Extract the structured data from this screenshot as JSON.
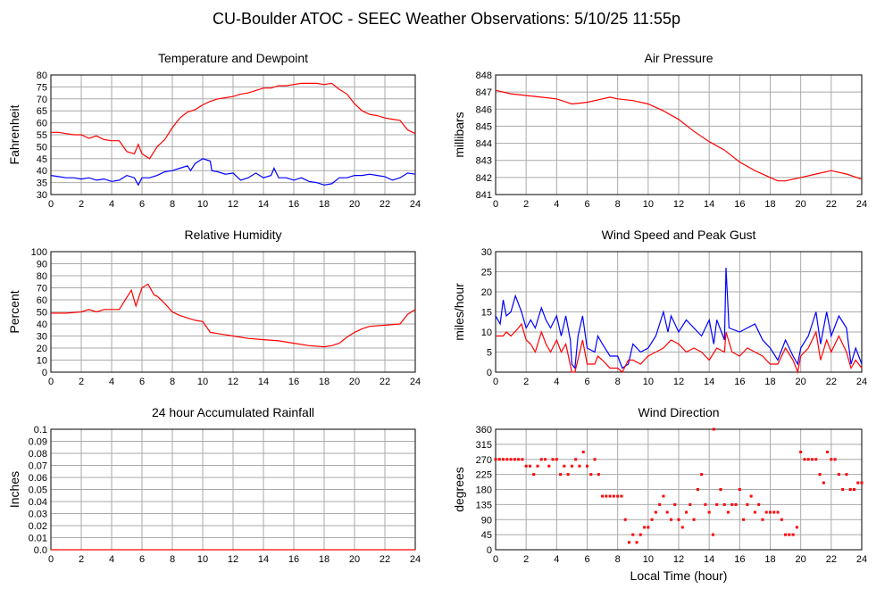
{
  "title": "CU-Boulder ATOC - SEEC Weather Observations: 5/10/25 11:55p",
  "shared_xlabel": "Local Time (hour)",
  "chart_data": [
    {
      "id": "temp",
      "type": "line",
      "title": "Temperature and Dewpoint",
      "xlabel": "",
      "ylabel": "Fahrenheit",
      "xlim": [
        0,
        24
      ],
      "ylim": [
        30,
        80
      ],
      "xticks": [
        0,
        2,
        4,
        6,
        8,
        10,
        12,
        14,
        16,
        18,
        20,
        22,
        24
      ],
      "yticks": [
        30,
        35,
        40,
        45,
        50,
        55,
        60,
        65,
        70,
        75,
        80
      ],
      "grid": true,
      "series": [
        {
          "color": "#ff0000",
          "x": [
            0,
            0.5,
            1,
            1.5,
            2,
            2.5,
            3,
            3.5,
            4,
            4.5,
            5,
            5.5,
            5.75,
            6,
            6.5,
            7,
            7.5,
            8,
            8.5,
            9,
            9.5,
            10,
            10.5,
            11,
            11.5,
            12,
            12.5,
            13,
            13.5,
            14,
            14.5,
            15,
            15.5,
            16,
            16.5,
            17,
            17.5,
            18,
            18.5,
            19,
            19.5,
            20,
            20.5,
            21,
            21.5,
            22,
            22.5,
            23,
            23.5,
            24
          ],
          "y": [
            56,
            56,
            55.5,
            55,
            55,
            53.5,
            54.5,
            53,
            52.5,
            52.5,
            48,
            47,
            51,
            47,
            45,
            50,
            53,
            58,
            62,
            64.5,
            65.5,
            67.5,
            69,
            70,
            70.5,
            71,
            72,
            72.5,
            73.5,
            74.5,
            74.5,
            75.5,
            75.5,
            76,
            76.5,
            76.5,
            76.5,
            76,
            76.5,
            74,
            72,
            68,
            65,
            63.5,
            63,
            62,
            61.5,
            61,
            57,
            55.5
          ]
        },
        {
          "color": "#0000ff",
          "x": [
            0,
            0.5,
            1,
            1.5,
            2,
            2.5,
            3,
            3.5,
            4,
            4.5,
            5,
            5.5,
            5.75,
            6,
            6.5,
            7,
            7.5,
            8,
            8.5,
            9,
            9.2,
            9.5,
            10,
            10.5,
            10.6,
            11,
            11.5,
            12,
            12.5,
            13,
            13.5,
            14,
            14.5,
            14.7,
            15,
            15.5,
            16,
            16.5,
            17,
            17.5,
            18,
            18.5,
            19,
            19.5,
            20,
            20.5,
            21,
            21.5,
            22,
            22.5,
            23,
            23.5,
            24
          ],
          "y": [
            38,
            37.5,
            37,
            37,
            36.5,
            37,
            36,
            36.5,
            35.5,
            36,
            38,
            37,
            34,
            37,
            37,
            38,
            39.5,
            40,
            41,
            42,
            40,
            43,
            45,
            44,
            40,
            39.5,
            38.5,
            39,
            36,
            37,
            39,
            37,
            38,
            41,
            37,
            37,
            36,
            37,
            35.5,
            35,
            34,
            34.5,
            37,
            37,
            38,
            38,
            38.5,
            38,
            37.5,
            36,
            37,
            39,
            38.5
          ]
        }
      ]
    },
    {
      "id": "pressure",
      "type": "line",
      "title": "Air Pressure",
      "xlabel": "",
      "ylabel": "millibars",
      "xlim": [
        0,
        24
      ],
      "ylim": [
        841,
        848
      ],
      "xticks": [
        0,
        2,
        4,
        6,
        8,
        10,
        12,
        14,
        16,
        18,
        20,
        22,
        24
      ],
      "yticks": [
        841,
        842,
        843,
        844,
        845,
        846,
        847,
        848
      ],
      "grid": true,
      "series": [
        {
          "color": "#ff0000",
          "x": [
            0,
            1,
            2,
            3,
            4,
            5,
            6,
            7,
            7.5,
            8,
            9,
            10,
            11,
            12,
            13,
            14,
            15,
            16,
            17,
            18,
            18.5,
            19,
            20,
            21,
            22,
            23,
            24
          ],
          "y": [
            847.1,
            846.9,
            846.8,
            846.7,
            846.6,
            846.3,
            846.4,
            846.6,
            846.7,
            846.6,
            846.5,
            846.3,
            845.9,
            845.4,
            844.7,
            844.1,
            843.6,
            842.9,
            842.4,
            842,
            841.8,
            841.8,
            842,
            842.2,
            842.4,
            842.2,
            841.9
          ]
        }
      ]
    },
    {
      "id": "rh",
      "type": "line",
      "title": "Relative Humidity",
      "xlabel": "",
      "ylabel": "Percent",
      "xlim": [
        0,
        24
      ],
      "ylim": [
        0,
        100
      ],
      "xticks": [
        0,
        2,
        4,
        6,
        8,
        10,
        12,
        14,
        16,
        18,
        20,
        22,
        24
      ],
      "yticks": [
        0,
        10,
        20,
        30,
        40,
        50,
        60,
        70,
        80,
        90,
        100
      ],
      "grid": true,
      "series": [
        {
          "color": "#ff0000",
          "x": [
            0,
            1,
            2,
            2.5,
            3,
            3.5,
            4,
            4.5,
            5,
            5.3,
            5.6,
            6,
            6.4,
            6.8,
            7,
            7.5,
            8,
            8.5,
            9,
            9.5,
            10,
            10.5,
            11,
            12,
            13,
            14,
            15,
            16,
            17,
            18,
            18.5,
            19,
            19.5,
            20,
            20.5,
            21,
            22,
            23,
            23.5,
            24
          ],
          "y": [
            49,
            49,
            50,
            52,
            50,
            52,
            52,
            52,
            62,
            68,
            55,
            70,
            73,
            64,
            63,
            57,
            50,
            47,
            45,
            43,
            42,
            33,
            32,
            30,
            28,
            27,
            26,
            24,
            22,
            21,
            22,
            24,
            29,
            33,
            36,
            38,
            39,
            40,
            48,
            52
          ]
        }
      ]
    },
    {
      "id": "wind",
      "type": "line",
      "title": "Wind Speed and Peak Gust",
      "xlabel": "",
      "ylabel": "miles/hour",
      "xlim": [
        0,
        24
      ],
      "ylim": [
        0,
        30
      ],
      "xticks": [
        0,
        2,
        4,
        6,
        8,
        10,
        12,
        14,
        16,
        18,
        20,
        22,
        24
      ],
      "yticks": [
        0,
        5,
        10,
        15,
        20,
        25,
        30
      ],
      "grid": true,
      "series": [
        {
          "color": "#0000ff",
          "x": [
            0,
            0.3,
            0.5,
            0.7,
            1,
            1.3,
            1.5,
            1.7,
            2,
            2.3,
            2.6,
            3,
            3.3,
            3.6,
            4,
            4.3,
            4.6,
            4.9,
            5,
            5.2,
            5.4,
            5.7,
            6,
            6.5,
            6.7,
            7,
            7.5,
            8,
            8.3,
            8.7,
            9,
            9.5,
            10,
            10.5,
            11,
            11.3,
            11.5,
            12,
            12.5,
            13,
            13.5,
            14,
            14.3,
            14.5,
            15,
            15.1,
            15.3,
            16,
            16.5,
            17,
            17.5,
            18,
            18.5,
            19,
            19.5,
            19.8,
            20,
            20.5,
            21,
            21.3,
            21.7,
            22,
            22.5,
            23,
            23.3,
            23.6,
            24
          ],
          "y": [
            14,
            12,
            18,
            14,
            15,
            19,
            17,
            15,
            11,
            13,
            11,
            16,
            13,
            11,
            14,
            9,
            14,
            8,
            2,
            1,
            9,
            14,
            6,
            5,
            9,
            7,
            4,
            4,
            1,
            2,
            7,
            5,
            6,
            9,
            15,
            10,
            14,
            10,
            13,
            11,
            9,
            13,
            7,
            13,
            8,
            26,
            11,
            10,
            11,
            12,
            8,
            6,
            3,
            8,
            4,
            2,
            6,
            9,
            15,
            7,
            15,
            9,
            14,
            11,
            2,
            6,
            2
          ]
        },
        {
          "color": "#ff0000",
          "x": [
            0,
            0.5,
            0.7,
            1,
            1.5,
            1.7,
            2,
            2.3,
            2.6,
            3,
            3.3,
            3.6,
            4,
            4.3,
            4.6,
            5,
            5.2,
            5.7,
            6,
            6.5,
            6.7,
            7,
            7.5,
            8,
            8.3,
            8.7,
            9,
            9.5,
            10,
            10.5,
            11,
            11.5,
            12,
            12.5,
            13,
            13.5,
            14,
            14.5,
            15,
            15.1,
            15.5,
            16,
            16.5,
            17,
            17.5,
            18,
            18.5,
            19,
            19.5,
            19.8,
            20,
            20.5,
            21,
            21.3,
            21.7,
            22,
            22.5,
            23,
            23.3,
            23.6,
            24
          ],
          "y": [
            9,
            9,
            10,
            9,
            11,
            12,
            8,
            7,
            5,
            10,
            7,
            5,
            8,
            5,
            7,
            0,
            0,
            8,
            2,
            2,
            4,
            3,
            1,
            1,
            0,
            3,
            3,
            2,
            4,
            5,
            6,
            8,
            7,
            5,
            6,
            5,
            3,
            6,
            5,
            10,
            5,
            4,
            6,
            5,
            4,
            2,
            2,
            6,
            3,
            0,
            4,
            6,
            10,
            3,
            8,
            5,
            9,
            5,
            1,
            3,
            1
          ]
        }
      ]
    },
    {
      "id": "rain",
      "type": "line",
      "title": "24 hour Accumulated Rainfall",
      "xlabel": "",
      "ylabel": "Inches",
      "xlim": [
        0,
        24
      ],
      "ylim": [
        0,
        0.1
      ],
      "xticks": [
        0,
        2,
        4,
        6,
        8,
        10,
        12,
        14,
        16,
        18,
        20,
        22,
        24
      ],
      "yticks": [
        "0.0",
        "0.01",
        "0.02",
        "0.03",
        "0.04",
        "0.05",
        "0.06",
        "0.07",
        "0.08",
        "0.09",
        "0.1"
      ],
      "grid": true,
      "series": [
        {
          "color": "#ff0000",
          "x": [
            0,
            24
          ],
          "y": [
            0,
            0
          ]
        }
      ]
    },
    {
      "id": "winddir",
      "type": "scatter",
      "title": "Wind Direction",
      "xlabel": "Local Time (hour)",
      "ylabel": "degrees",
      "xlim": [
        0,
        24
      ],
      "ylim": [
        0,
        360
      ],
      "xticks": [
        0,
        2,
        4,
        6,
        8,
        10,
        12,
        14,
        16,
        18,
        20,
        22,
        24
      ],
      "yticks": [
        0,
        45,
        90,
        135,
        180,
        225,
        270,
        315,
        360
      ],
      "grid": true,
      "series": [
        {
          "color": "#ff0000",
          "x": [
            0,
            0.25,
            0.5,
            0.75,
            1,
            1.25,
            1.5,
            1.75,
            2,
            2.25,
            2.5,
            2.75,
            3,
            3.25,
            3.5,
            3.75,
            4,
            4.25,
            4.5,
            4.75,
            5,
            5.25,
            5.5,
            5.75,
            6,
            6.25,
            6.5,
            6.75,
            7,
            7.25,
            7.5,
            7.75,
            8,
            8.25,
            8.5,
            8.75,
            9,
            9.25,
            9.5,
            9.75,
            10,
            10.25,
            10.5,
            10.75,
            11,
            11.25,
            11.5,
            11.75,
            12,
            12.25,
            12.5,
            12.75,
            13,
            13.25,
            13.5,
            13.75,
            14,
            14.25,
            14.3,
            14.5,
            14.75,
            15,
            15.25,
            15.5,
            15.75,
            16,
            16.25,
            16.5,
            16.75,
            17,
            17.25,
            17.5,
            17.75,
            18,
            18.25,
            18.5,
            18.75,
            19,
            19.25,
            19.5,
            19.75,
            20,
            20.25,
            20.5,
            20.75,
            21,
            21.25,
            21.5,
            21.75,
            22,
            22.25,
            22.5,
            22.75,
            23,
            23.25,
            23.5,
            23.75,
            24
          ],
          "y": [
            270,
            270,
            270,
            270,
            270,
            270,
            270,
            270,
            250,
            250,
            225,
            250,
            270,
            270,
            250,
            270,
            270,
            225,
            250,
            225,
            250,
            270,
            250,
            292,
            250,
            225,
            270,
            225,
            160,
            160,
            160,
            160,
            160,
            160,
            90,
            22,
            45,
            22,
            45,
            67,
            67,
            90,
            112,
            135,
            160,
            112,
            90,
            135,
            90,
            67,
            112,
            135,
            90,
            180,
            225,
            135,
            112,
            45,
            360,
            135,
            180,
            135,
            112,
            135,
            135,
            180,
            90,
            135,
            160,
            112,
            135,
            90,
            112,
            112,
            112,
            112,
            90,
            45,
            45,
            45,
            67,
            292,
            270,
            270,
            270,
            270,
            225,
            200,
            292,
            270,
            270,
            225,
            180,
            225,
            180,
            180,
            200,
            200
          ]
        }
      ]
    }
  ]
}
